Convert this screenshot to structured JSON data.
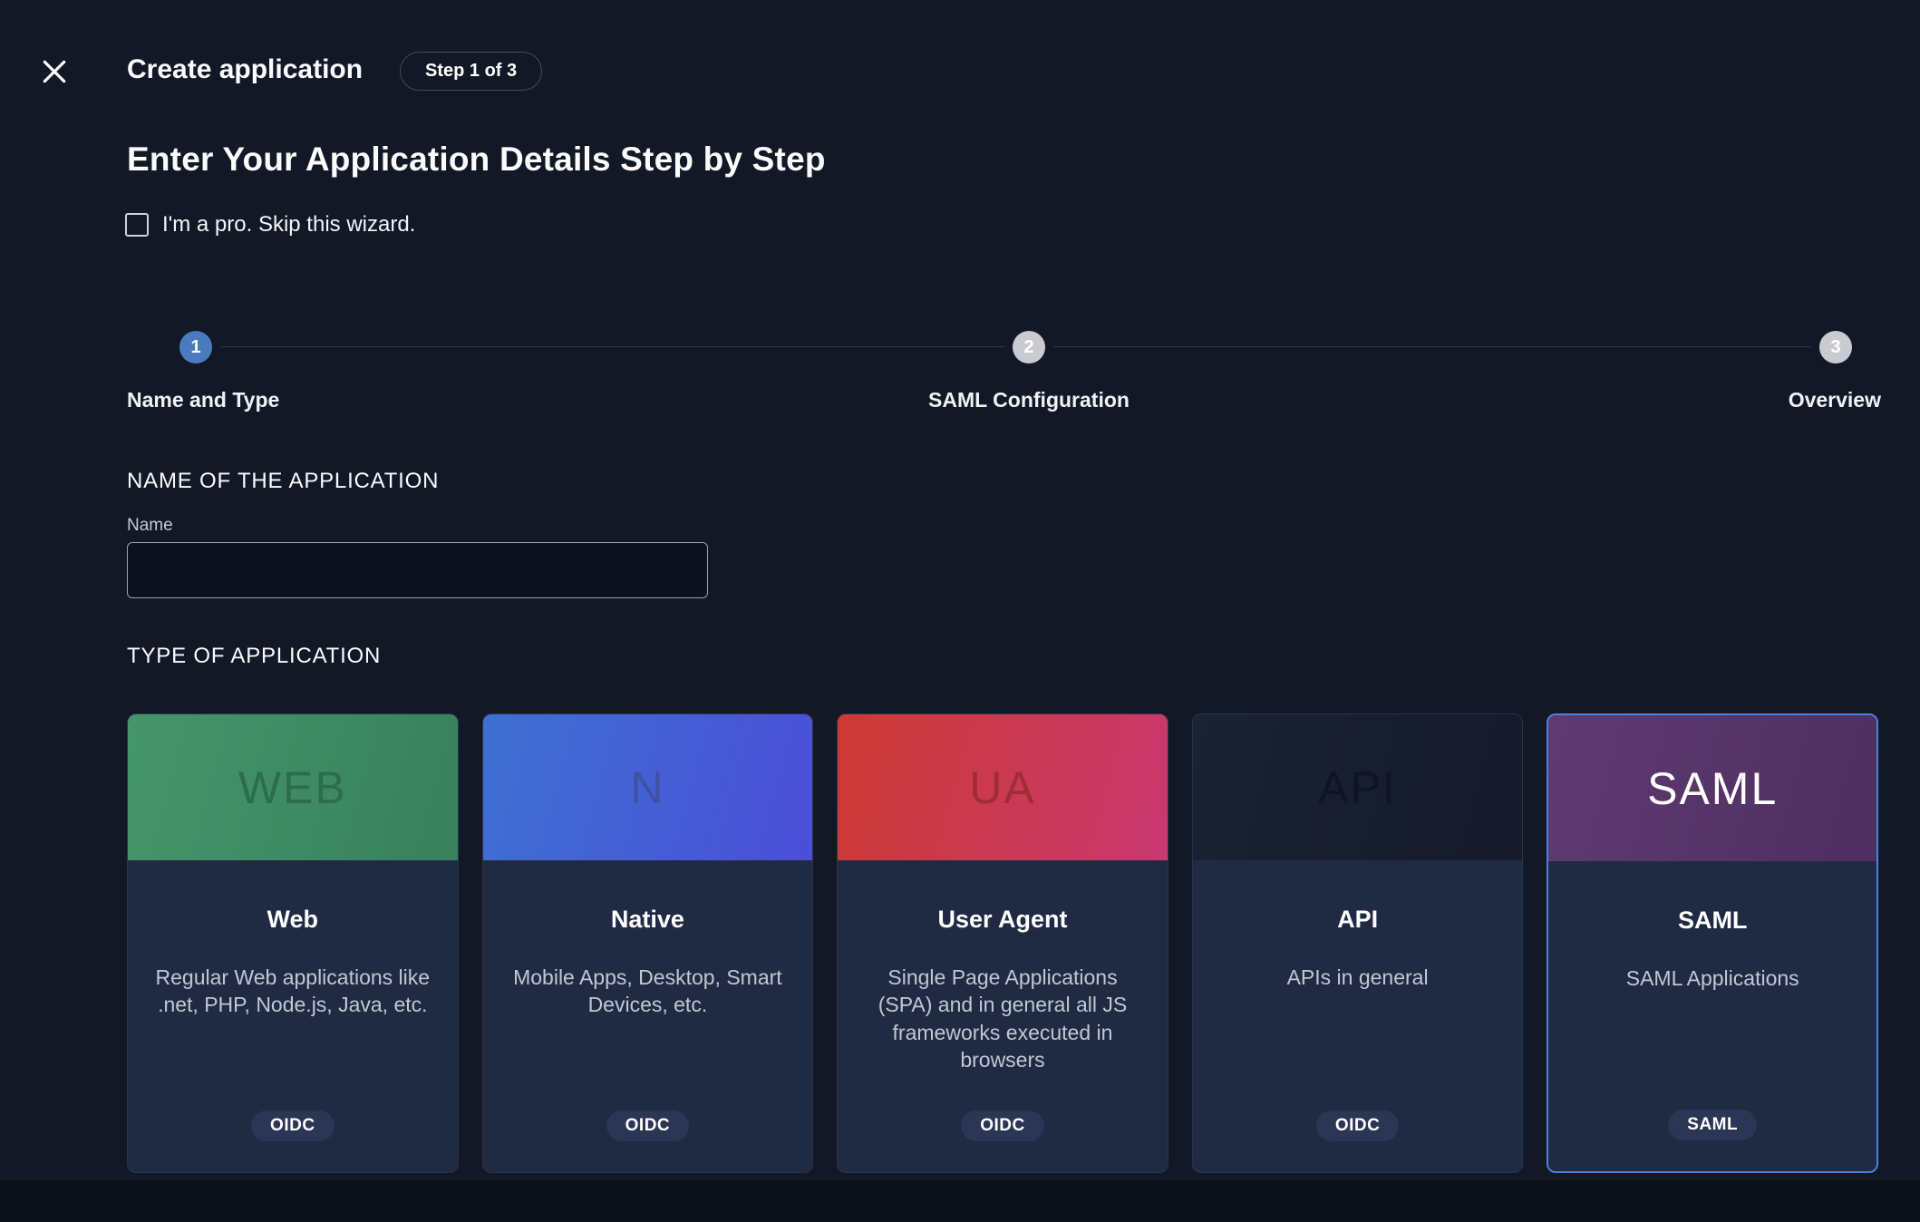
{
  "header": {
    "title": "Create application",
    "step_badge": "Step 1 of 3"
  },
  "intro": {
    "heading": "Enter Your Application Details Step by Step",
    "skip_label": "I'm a pro. Skip this wizard.",
    "skip_checked": false
  },
  "stepper": {
    "steps": [
      {
        "number": "1",
        "label": "Name and Type",
        "state": "active"
      },
      {
        "number": "2",
        "label": "SAML Configuration",
        "state": "idle"
      },
      {
        "number": "3",
        "label": "Overview",
        "state": "idle"
      }
    ]
  },
  "name_section": {
    "title": "NAME OF THE APPLICATION",
    "field_label": "Name",
    "field_value": ""
  },
  "type_section": {
    "title": "TYPE OF APPLICATION",
    "cards": [
      {
        "id": "web",
        "header_letter": "WEB",
        "gradient": [
          "#45956c",
          "#37815c"
        ],
        "letter_color": "#2c6d4e",
        "title": "Web",
        "description": "Regular Web applications like .net, PHP, Node.js, Java, etc.",
        "badge": "OIDC",
        "selected": false
      },
      {
        "id": "native",
        "header_letter": "N",
        "gradient": [
          "#3e70d2",
          "#4b4ed8"
        ],
        "letter_color": "#3f51a3",
        "title": "Native",
        "description": "Mobile Apps, Desktop, Smart Devices, etc.",
        "badge": "OIDC",
        "selected": false
      },
      {
        "id": "user-agent",
        "header_letter": "UA",
        "gradient": [
          "#cc3a33",
          "#c93870"
        ],
        "letter_color": "#a02c38",
        "title": "User Agent",
        "description": "Single Page Applications (SPA) and in general all JS frameworks executed in browsers",
        "badge": "OIDC",
        "selected": false
      },
      {
        "id": "api",
        "header_letter": "API",
        "gradient": [
          "#1a2233",
          "#141a29"
        ],
        "letter_color": "#0e1424",
        "title": "API",
        "description": "APIs in general",
        "badge": "OIDC",
        "selected": false
      },
      {
        "id": "saml",
        "header_letter": "SAML",
        "gradient": [
          "#5e3a72",
          "#4e2f60"
        ],
        "letter_color": "#ffffff",
        "title": "SAML",
        "description": "SAML Applications",
        "badge": "SAML",
        "selected": true
      }
    ]
  },
  "colors": {
    "background": "#121826",
    "card_background": "#202a43",
    "badge_background": "#2b3554",
    "step_active": "#4a7bc0",
    "step_idle": "#c9cbd1",
    "selected_border": "#4e80d8"
  }
}
